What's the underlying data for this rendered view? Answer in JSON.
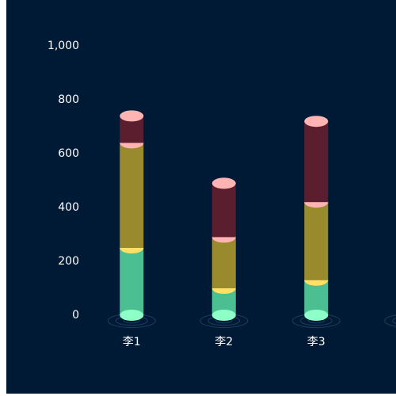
{
  "chart_data": {
    "type": "stacked-cylinder",
    "categories": [
      "李1",
      "李2",
      "李3",
      null
    ],
    "series": [
      {
        "color": "#4cbf92",
        "cap_color": "#ffe066",
        "values": [
          250,
          100,
          130,
          null
        ]
      },
      {
        "color": "#9a8a2e",
        "cap_color": "#ffb3b3",
        "values": [
          390,
          190,
          290,
          null
        ]
      },
      {
        "color": "#5a1e2e",
        "cap_color": "#ffb3b3",
        "values": [
          100,
          200,
          300,
          null
        ]
      }
    ],
    "base_color": "#8fffc8",
    "background": "#001a35",
    "ylim": [
      0,
      1000
    ],
    "yticks": [
      0,
      200,
      400,
      600,
      800,
      {
        "value": 1000,
        "label": "1,000"
      }
    ]
  }
}
